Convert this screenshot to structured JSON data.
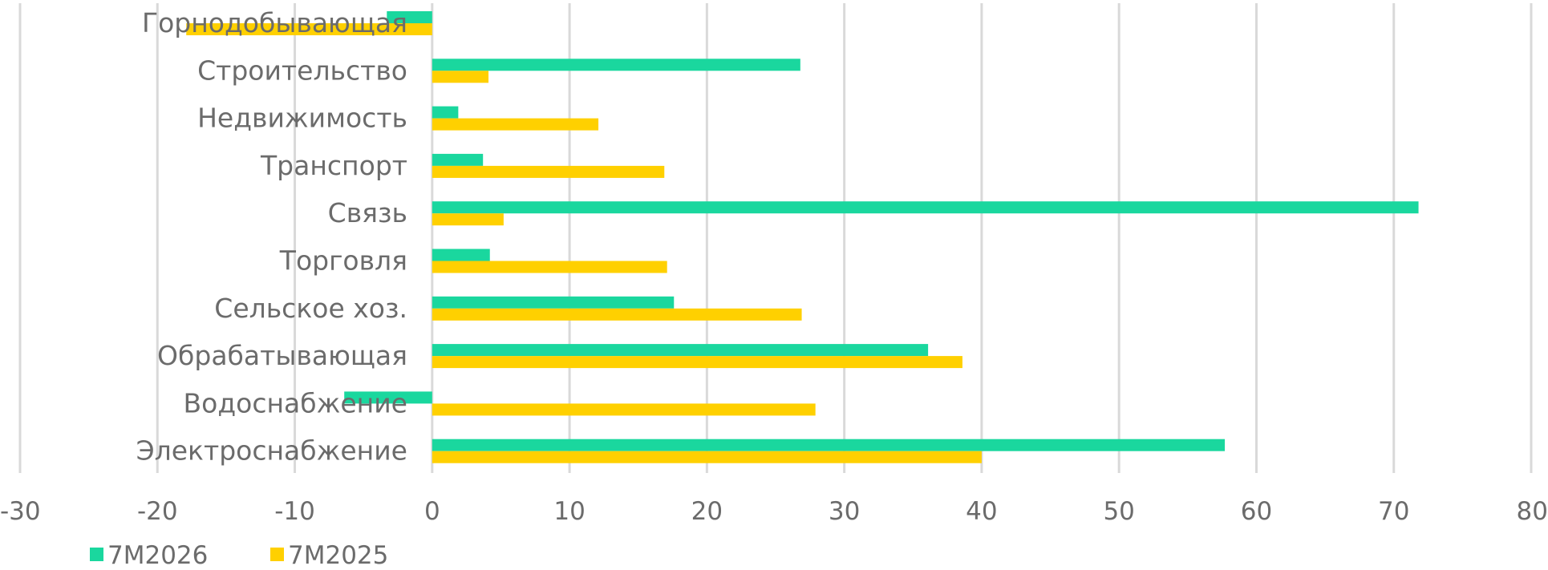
{
  "chart_data": {
    "type": "bar",
    "orientation": "horizontal",
    "categories": [
      "Горнодобывающая",
      "Строительство",
      "Недвижимость",
      "Транспорт",
      "Связь",
      "Торговля",
      "Сельское хоз.",
      "Обрабатывающая",
      "Водоснабжение",
      "Электроснабжение"
    ],
    "series": [
      {
        "name": "7М2026",
        "color": "#1ad79e",
        "values": [
          -3.3,
          26.8,
          1.9,
          3.7,
          71.8,
          4.2,
          17.6,
          36.1,
          -6.4,
          57.7
        ]
      },
      {
        "name": "7М2025",
        "color": "#ffd000",
        "values": [
          -17.9,
          4.1,
          12.1,
          16.9,
          5.2,
          17.1,
          26.9,
          38.6,
          27.9,
          40.0
        ]
      }
    ],
    "xlim": [
      -30,
      80
    ],
    "xticks": [
      -30,
      -20,
      -10,
      0,
      10,
      20,
      30,
      40,
      50,
      60,
      70,
      80
    ],
    "xtick_labels": [
      "-30",
      "-20",
      "-10",
      "0",
      "10",
      "20",
      "30",
      "40",
      "50",
      "60",
      "70",
      "80"
    ],
    "grid": "vertical",
    "legend_position": "bottom-left",
    "title": "",
    "xlabel": "",
    "ylabel": ""
  }
}
